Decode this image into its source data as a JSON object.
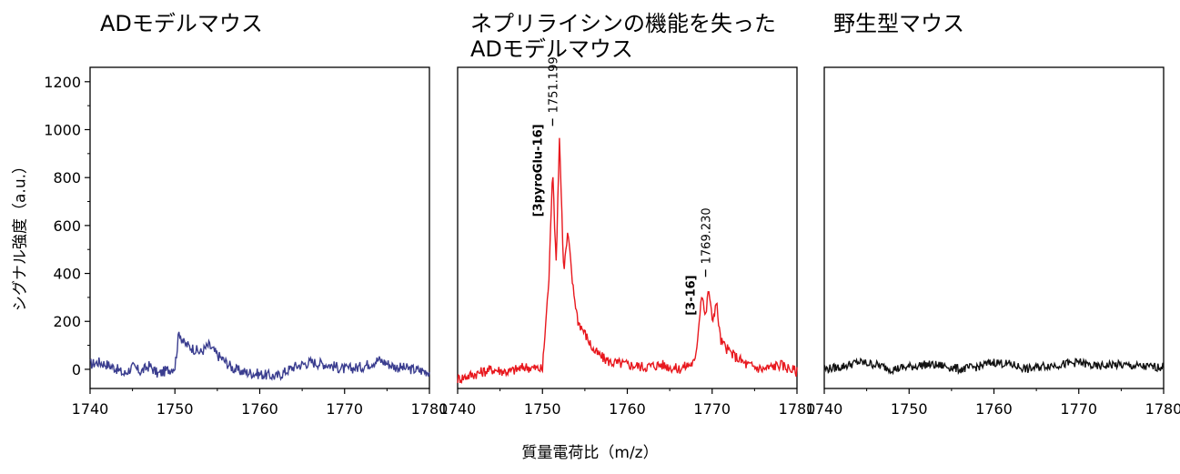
{
  "panels": [
    {
      "title_lines": [
        "ADモデルマウス"
      ]
    },
    {
      "title_lines": [
        "ネプリライシンの機能を失った",
        "ADモデルマウス"
      ]
    },
    {
      "title_lines": [
        "野生型マウス"
      ]
    }
  ],
  "xlabel": "質量電荷比（m/z）",
  "ylabel": "シグナル強度（a.u.）",
  "chart_data": [
    {
      "type": "line",
      "xlim": [
        1740,
        1780
      ],
      "ylim": [
        -80,
        1260
      ],
      "x_ticks": [
        1740,
        1750,
        1760,
        1770,
        1780
      ],
      "y_ticks": [
        0,
        200,
        400,
        600,
        800,
        1000,
        1200
      ],
      "series_color": "#3a3d8f",
      "series": [
        {
          "x": [
            1740,
            1741,
            1742,
            1743,
            1744,
            1745,
            1746,
            1747,
            1748,
            1749,
            1750,
            1750.5,
            1751,
            1752,
            1753,
            1754,
            1755,
            1756,
            1757,
            1758,
            1760,
            1762,
            1764,
            1766,
            1768,
            1770,
            1772,
            1774,
            1776,
            1778,
            1780
          ],
          "y": [
            20,
            30,
            20,
            5,
            -20,
            10,
            -10,
            15,
            -20,
            -5,
            10,
            160,
            110,
            90,
            70,
            100,
            60,
            30,
            0,
            -10,
            -20,
            -30,
            10,
            30,
            20,
            0,
            10,
            40,
            10,
            0,
            -10
          ]
        }
      ],
      "annotations": []
    },
    {
      "type": "line",
      "xlim": [
        1740,
        1780
      ],
      "ylim": [
        -80,
        1260
      ],
      "x_ticks": [
        1740,
        1750,
        1760,
        1770,
        1780
      ],
      "y_ticks": [
        0,
        200,
        400,
        600,
        800,
        1000,
        1200
      ],
      "series_color": "#e8181e",
      "series": [
        {
          "x": [
            1740,
            1742,
            1744,
            1746,
            1748,
            1750,
            1750.8,
            1751.2,
            1751.6,
            1752.0,
            1752.5,
            1753.0,
            1753.6,
            1754.2,
            1755,
            1756,
            1757,
            1758,
            1760,
            1762,
            1764,
            1766,
            1768,
            1768.8,
            1769.2,
            1769.6,
            1770.0,
            1770.5,
            1771.0,
            1771.6,
            1772.5,
            1774,
            1776,
            1778,
            1780
          ],
          "y": [
            -40,
            -20,
            0,
            -10,
            10,
            0,
            400,
            860,
            420,
            970,
            410,
            570,
            340,
            200,
            150,
            80,
            50,
            30,
            20,
            10,
            20,
            0,
            30,
            330,
            210,
            340,
            200,
            280,
            120,
            90,
            60,
            20,
            0,
            20,
            -10
          ]
        }
      ],
      "annotations": [
        {
          "label": "[3pyroGlu-16]",
          "value": "1751.199",
          "x": 1751.199,
          "y": 970
        },
        {
          "label": "[3-16]",
          "value": "1769.230",
          "x": 1769.23,
          "y": 340
        }
      ]
    },
    {
      "type": "line",
      "xlim": [
        1740,
        1780
      ],
      "ylim": [
        -80,
        1260
      ],
      "x_ticks": [
        1740,
        1750,
        1760,
        1770,
        1780
      ],
      "y_ticks": [
        0,
        200,
        400,
        600,
        800,
        1000,
        1200
      ],
      "series_color": "#111111",
      "series": [
        {
          "x": [
            1740,
            1742,
            1744,
            1746,
            1748,
            1750,
            1752,
            1754,
            1756,
            1758,
            1760,
            1762,
            1764,
            1766,
            1768,
            1770,
            1772,
            1774,
            1776,
            1778,
            1780
          ],
          "y": [
            0,
            10,
            30,
            20,
            0,
            10,
            20,
            15,
            0,
            10,
            30,
            20,
            0,
            15,
            20,
            30,
            10,
            20,
            15,
            10,
            10
          ]
        }
      ],
      "annotations": []
    }
  ]
}
